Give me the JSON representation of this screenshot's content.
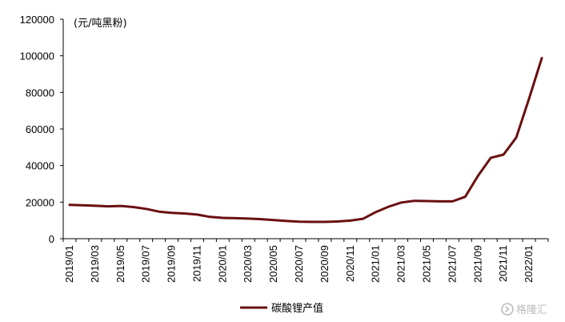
{
  "chart_data": {
    "type": "line",
    "unit_label": "(元/吨黑粉)",
    "ylim": [
      0,
      120000
    ],
    "yticks": [
      0,
      20000,
      40000,
      60000,
      80000,
      100000,
      120000
    ],
    "ytick_labels": [
      "0",
      "20000",
      "40000",
      "60000",
      "80000",
      "100000",
      "120000"
    ],
    "x": [
      "2019/01",
      "2019/02",
      "2019/03",
      "2019/04",
      "2019/05",
      "2019/06",
      "2019/07",
      "2019/08",
      "2019/09",
      "2019/10",
      "2019/11",
      "2019/12",
      "2020/01",
      "2020/02",
      "2020/03",
      "2020/04",
      "2020/05",
      "2020/06",
      "2020/07",
      "2020/08",
      "2020/09",
      "2020/10",
      "2020/11",
      "2020/12",
      "2021/01",
      "2021/02",
      "2021/03",
      "2021/04",
      "2021/05",
      "2021/06",
      "2021/07",
      "2021/08",
      "2021/09",
      "2021/10",
      "2021/11",
      "2021/12",
      "2022/01",
      "2022/02"
    ],
    "xtick_labels": [
      "2019/01",
      "2019/03",
      "2019/05",
      "2019/07",
      "2019/09",
      "2019/11",
      "2020/01",
      "2020/03",
      "2020/05",
      "2020/07",
      "2020/09",
      "2020/11",
      "2021/01",
      "2021/03",
      "2021/05",
      "2021/07",
      "2021/09",
      "2021/11",
      "2022/01"
    ],
    "series": [
      {
        "name": "碳酸锂产值",
        "color": "#6b0f10",
        "values": [
          18500,
          18300,
          18000,
          17700,
          17900,
          17300,
          16300,
          14800,
          14100,
          13800,
          13200,
          11900,
          11400,
          11200,
          11000,
          10700,
          10200,
          9700,
          9300,
          9200,
          9200,
          9400,
          9900,
          10900,
          14600,
          17500,
          19800,
          20700,
          20600,
          20400,
          20400,
          22900,
          34400,
          44200,
          46000,
          55300,
          76600,
          98700
        ]
      }
    ],
    "legend": "bottom-center",
    "grid": false
  },
  "watermark": {
    "icon": "gelonghui-logo-icon",
    "text": "格隆汇"
  }
}
